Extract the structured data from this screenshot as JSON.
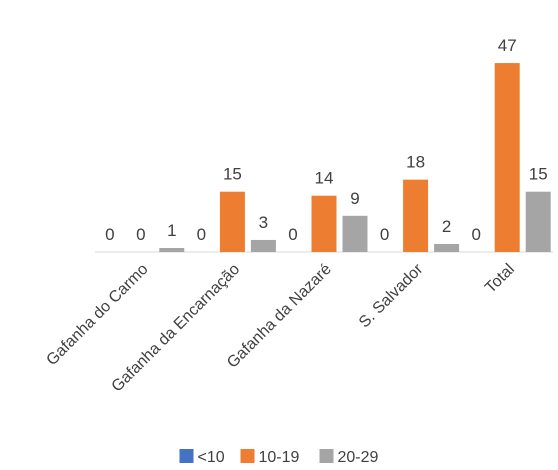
{
  "chart_data": {
    "type": "bar",
    "categories": [
      "Gafanha do Carmo",
      "Gafanha da Encarnação",
      "Gafanha da Nazaré",
      "S. Salvador",
      "Total"
    ],
    "series": [
      {
        "name": "<10",
        "color": "#4472C4",
        "values": [
          0,
          0,
          0,
          0,
          0
        ]
      },
      {
        "name": "10-19",
        "color": "#ED7D31",
        "values": [
          0,
          15,
          14,
          18,
          47
        ]
      },
      {
        "name": "20-29",
        "color": "#A5A5A5",
        "values": [
          1,
          3,
          9,
          2,
          15
        ]
      }
    ],
    "ylim": [
      0,
      50
    ],
    "grid": false,
    "legend_position": "bottom",
    "data_labels": true
  }
}
